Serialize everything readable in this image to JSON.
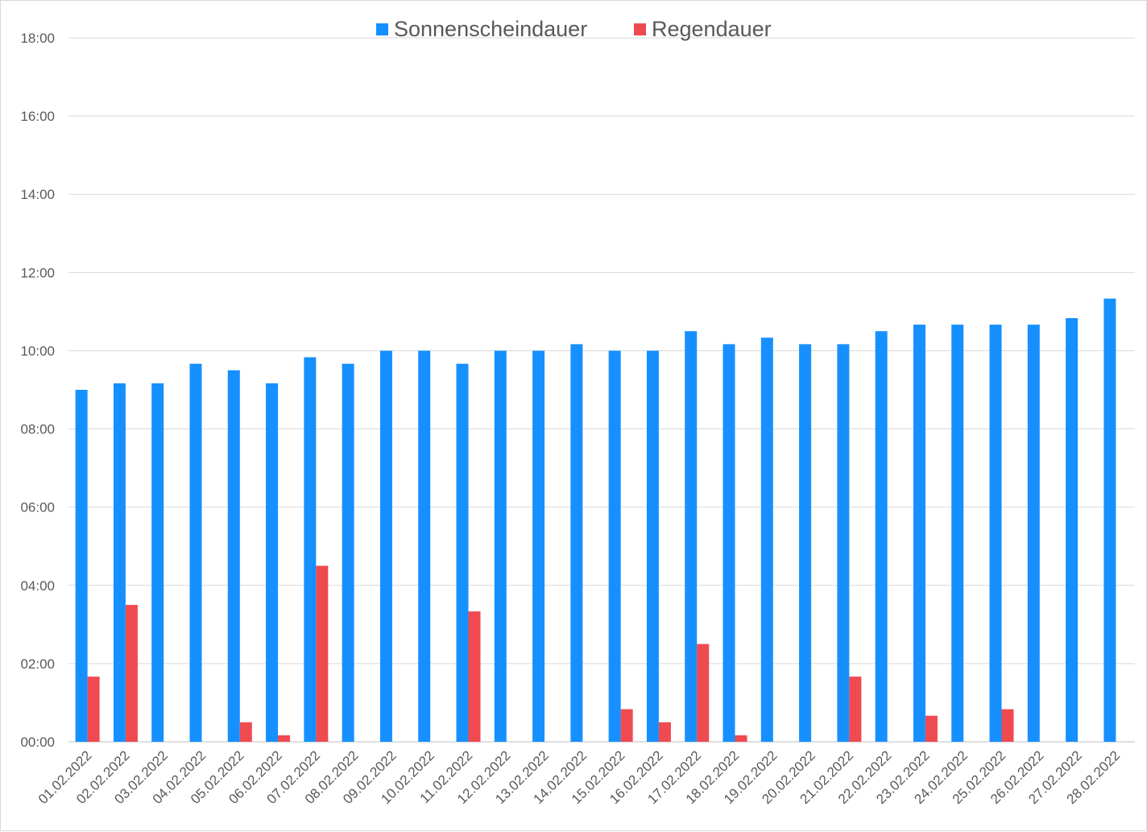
{
  "chart_data": {
    "type": "bar",
    "categories": [
      "01.02.2022",
      "02.02.2022",
      "03.02.2022",
      "04.02.2022",
      "05.02.2022",
      "06.02.2022",
      "07.02.2022",
      "08.02.2022",
      "09.02.2022",
      "10.02.2022",
      "11.02.2022",
      "12.02.2022",
      "13.02.2022",
      "14.02.2022",
      "15.02.2022",
      "16.02.2022",
      "17.02.2022",
      "18.02.2022",
      "19.02.2022",
      "20.02.2022",
      "21.02.2022",
      "22.02.2022",
      "23.02.2022",
      "24.02.2022",
      "25.02.2022",
      "26.02.2022",
      "27.02.2022",
      "28.02.2022"
    ],
    "series": [
      {
        "name": "Sonnenscheindauer",
        "color": "#1690FF",
        "values": [
          "09:00",
          "09:10",
          "09:10",
          "09:40",
          "09:30",
          "09:10",
          "09:50",
          "09:40",
          "10:00",
          "10:00",
          "09:40",
          "10:00",
          "10:00",
          "10:10",
          "10:00",
          "10:00",
          "10:30",
          "10:10",
          "10:20",
          "10:10",
          "10:10",
          "10:30",
          "10:40",
          "10:40",
          "10:40",
          "10:40",
          "10:50",
          "11:20"
        ]
      },
      {
        "name": "Regendauer",
        "color": "#F04A51",
        "values": [
          "01:40",
          "03:30",
          null,
          null,
          "00:30",
          "00:10",
          "04:30",
          null,
          null,
          null,
          "03:20",
          null,
          null,
          null,
          "00:50",
          "00:30",
          "02:30",
          "00:10",
          null,
          null,
          "01:40",
          null,
          "00:40",
          null,
          "00:50",
          null,
          null,
          null
        ]
      }
    ],
    "y_ticks": [
      "00:00",
      "02:00",
      "04:00",
      "06:00",
      "08:00",
      "10:00",
      "12:00",
      "14:00",
      "16:00",
      "18:00"
    ],
    "ylim": [
      "00:00",
      "18:00"
    ],
    "title": "",
    "xlabel": "",
    "ylabel": "",
    "grid": true,
    "legend_position": "top-center"
  }
}
